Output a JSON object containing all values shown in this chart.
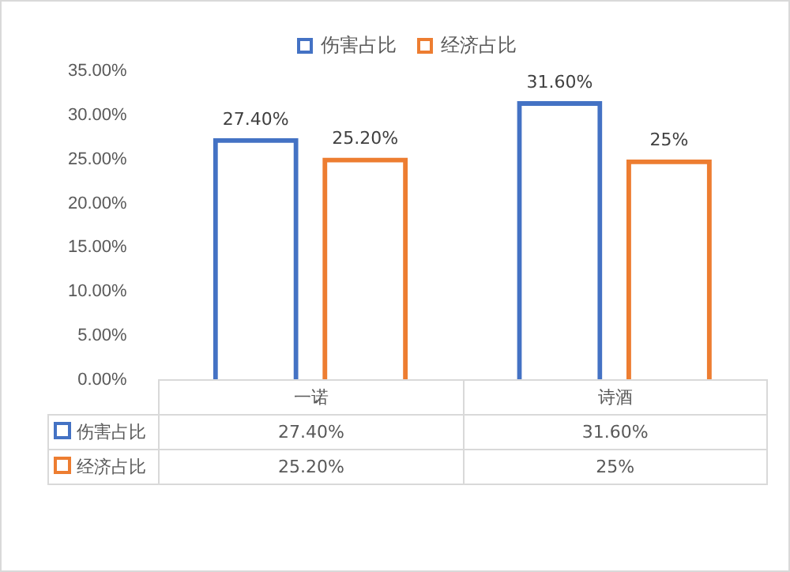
{
  "chart_data": {
    "type": "bar",
    "categories": [
      "一诺",
      "诗酒"
    ],
    "series": [
      {
        "name": "伤害占比",
        "color": "#4472c4",
        "values": [
          27.4,
          31.6
        ],
        "value_labels": [
          "27.40%",
          "31.60%"
        ]
      },
      {
        "name": "经济占比",
        "color": "#ed7d31",
        "values": [
          25.2,
          25
        ],
        "value_labels": [
          "25.20%",
          "25%"
        ]
      }
    ],
    "ylim": [
      0,
      35
    ],
    "yticks": [
      {
        "value": 0,
        "label": "0.00%"
      },
      {
        "value": 5,
        "label": "5.00%"
      },
      {
        "value": 10,
        "label": "10.00%"
      },
      {
        "value": 15,
        "label": "15.00%"
      },
      {
        "value": 20,
        "label": "20.00%"
      },
      {
        "value": 25,
        "label": "25.00%"
      },
      {
        "value": 30,
        "label": "30.00%"
      },
      {
        "value": 35,
        "label": "35.00%"
      }
    ],
    "legend": "top"
  }
}
